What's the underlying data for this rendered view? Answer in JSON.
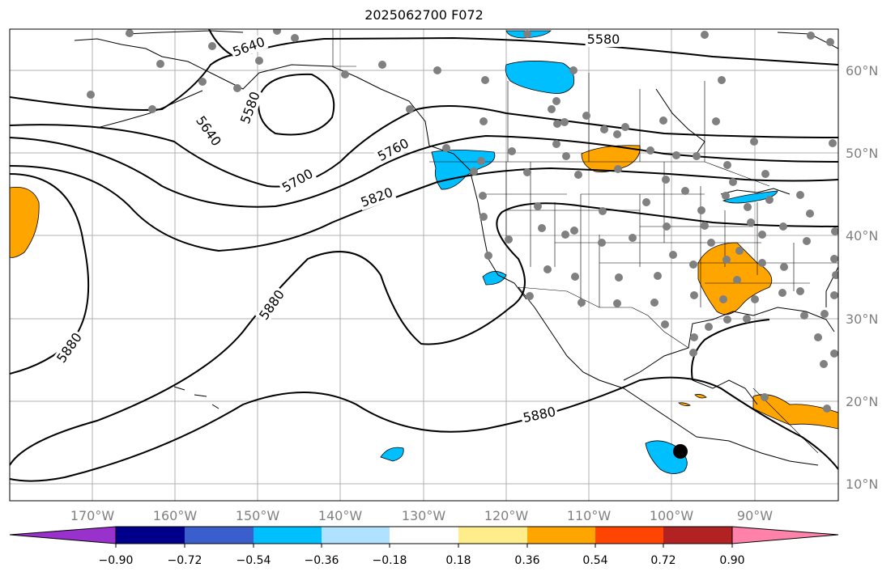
{
  "title": "2025062700 F072",
  "map": {
    "projection": "PlateCarree",
    "lon_range": [
      -180,
      -78
    ],
    "lat_range": [
      8,
      66
    ],
    "lat_labels": [
      "60°N",
      "50°N",
      "40°N",
      "30°N",
      "20°N",
      "10°N"
    ],
    "lon_labels": [
      "170°W",
      "160°W",
      "150°W",
      "140°W",
      "130°W",
      "120°W",
      "110°W",
      "100°W",
      "90°W"
    ],
    "contour_labels": [
      "5640",
      "5580",
      "5640",
      "5580",
      "5700",
      "5760",
      "5820",
      "5880",
      "5880",
      "5880"
    ],
    "marker_color": "#000000",
    "station_dot_color": "#808080"
  },
  "colorbar": {
    "colors": [
      "#9932cc",
      "#00008b",
      "#3a5fcd",
      "#00bfff",
      "#b0e2ff",
      "#ffffff",
      "#ffec8b",
      "#ffa500",
      "#ff4500",
      "#b22222",
      "#ff82ab"
    ],
    "ticks": [
      "−0.90",
      "−0.72",
      "−0.54",
      "−0.36",
      "−0.18",
      "0.18",
      "0.36",
      "0.54",
      "0.72",
      "0.90"
    ]
  }
}
